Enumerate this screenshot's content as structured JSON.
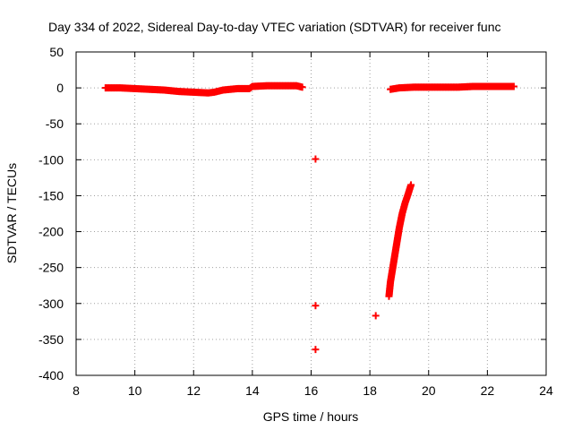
{
  "chart_data": {
    "type": "scatter",
    "title": "Day 334 of 2022, Sidereal Day-to-day VTEC variation (SDTVAR) for receiver func",
    "xlabel": "GPS time / hours",
    "ylabel": "SDTVAR / TECUs",
    "xlim": [
      8,
      24
    ],
    "ylim": [
      -400,
      50
    ],
    "x_ticks": [
      8,
      10,
      12,
      14,
      16,
      18,
      20,
      22,
      24
    ],
    "y_ticks": [
      50,
      0,
      -50,
      -100,
      -150,
      -200,
      -250,
      -300,
      -350,
      -400
    ],
    "grid": true,
    "marker": "+",
    "series": [
      {
        "name": "SDTVAR",
        "color": "#ff0000",
        "segments": [
          {
            "x": [
              9.0,
              9.5,
              10.0,
              10.5,
              11.0,
              11.5,
              12.0,
              12.5,
              12.7,
              13.0,
              13.5,
              13.9,
              14.0,
              14.5,
              15.0,
              15.5,
              15.7
            ],
            "y": [
              0,
              0,
              -1,
              -2,
              -3,
              -5,
              -6,
              -7,
              -6,
              -3,
              -1,
              -1,
              2,
              3,
              3,
              3,
              1
            ]
          },
          {
            "x": [
              18.7,
              19.0,
              19.5,
              20.0,
              20.5,
              21.0,
              21.5,
              22.0,
              22.5,
              22.9
            ],
            "y": [
              -2,
              0,
              1,
              1,
              1,
              1,
              2,
              2,
              2,
              2
            ]
          },
          {
            "x": [
              18.65,
              18.7,
              18.8,
              18.9,
              19.0,
              19.1,
              19.2,
              19.3,
              19.4
            ],
            "y": [
              -290,
              -270,
              -245,
              -220,
              -195,
              -175,
              -160,
              -148,
              -135
            ]
          }
        ],
        "isolated_points": [
          {
            "x": 16.15,
            "y": -99
          },
          {
            "x": 16.15,
            "y": -303
          },
          {
            "x": 16.15,
            "y": -364
          },
          {
            "x": 18.2,
            "y": -317
          }
        ]
      }
    ]
  }
}
